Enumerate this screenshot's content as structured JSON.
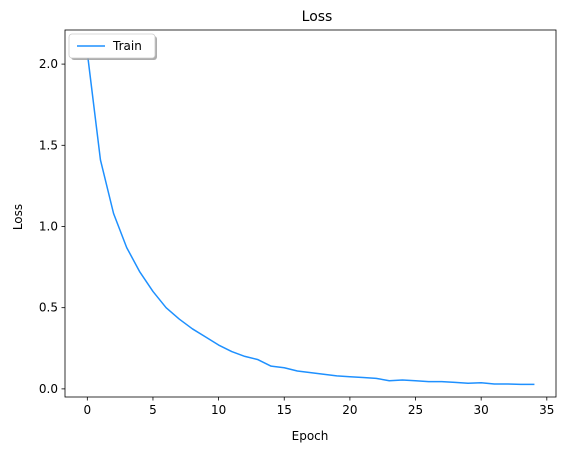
{
  "chart_data": {
    "type": "line",
    "title": "Loss",
    "xlabel": "Epoch",
    "ylabel": "Loss",
    "xlim": [
      -1.7,
      35.7
    ],
    "ylim": [
      -0.05,
      2.21
    ],
    "xticks": [
      0,
      5,
      10,
      15,
      20,
      25,
      30,
      35
    ],
    "yticks": [
      0.0,
      0.5,
      1.0,
      1.5,
      2.0
    ],
    "ytick_labels": [
      "0.0",
      "0.5",
      "1.0",
      "1.5",
      "2.0"
    ],
    "grid": false,
    "legend": {
      "position": "top-left",
      "entries": [
        "Train"
      ]
    },
    "series": [
      {
        "name": "Train",
        "color": "#1e90ff",
        "x": [
          0,
          1,
          2,
          3,
          4,
          5,
          6,
          7,
          8,
          9,
          10,
          11,
          12,
          13,
          14,
          15,
          16,
          17,
          18,
          19,
          20,
          21,
          22,
          23,
          24,
          25,
          26,
          27,
          28,
          29,
          30,
          31,
          32,
          33,
          34
        ],
        "y": [
          2.07,
          1.41,
          1.08,
          0.87,
          0.72,
          0.6,
          0.5,
          0.43,
          0.37,
          0.32,
          0.27,
          0.23,
          0.2,
          0.18,
          0.14,
          0.13,
          0.11,
          0.1,
          0.09,
          0.08,
          0.075,
          0.07,
          0.065,
          0.05,
          0.055,
          0.05,
          0.045,
          0.045,
          0.04,
          0.035,
          0.038,
          0.03,
          0.03,
          0.028,
          0.028
        ]
      }
    ]
  }
}
